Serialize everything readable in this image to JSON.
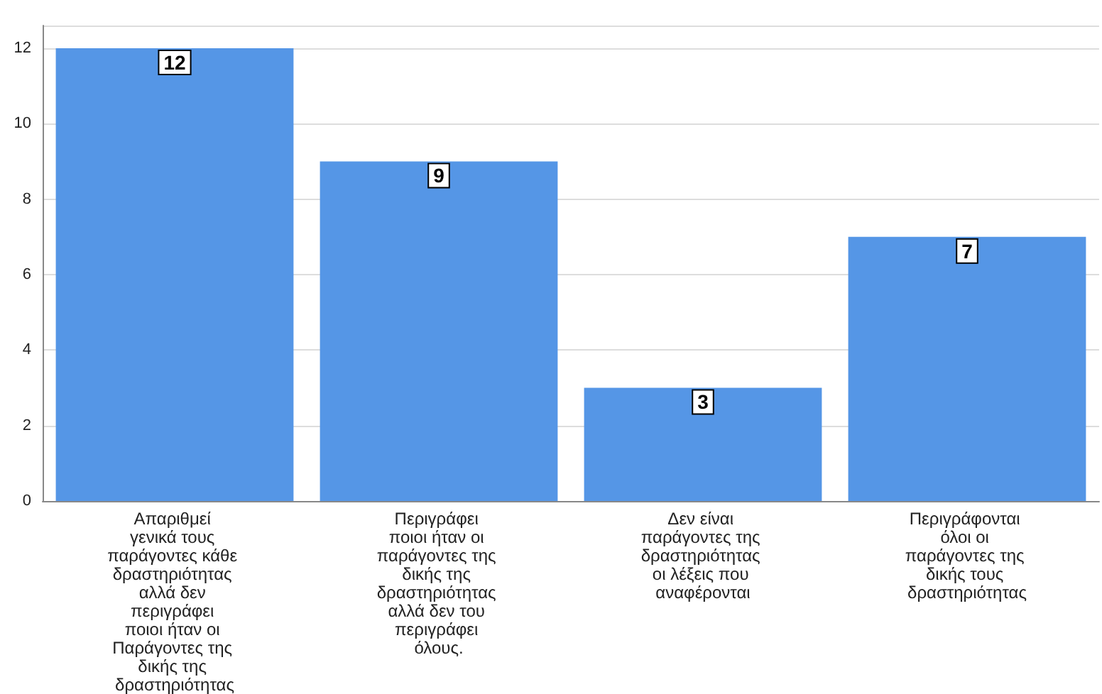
{
  "chart_data": {
    "type": "bar",
    "categories": [
      "Απαριθμεί γενικά τους παράγοντες κάθε δραστηριότητας αλλά δεν περιγράφει ποιοι ήταν οι Παράγοντες της δικής της δραστηριότητας",
      "Περιγράφει ποιοι ήταν οι παράγοντες της δικής της δραστηριότητας αλλά δεν του περιγράφει όλους.",
      "Δεν είναι παράγοντες της δραστηριότητας οι λέξεις που αναφέρονται",
      "Περιγράφονται όλοι οι παράγοντες της δικής τους δραστηριότητας"
    ],
    "values": [
      12,
      9,
      3,
      7
    ],
    "color": "#5596e6",
    "ylim": [
      0,
      12.6
    ],
    "yticks": [
      0,
      2,
      4,
      6,
      8,
      10,
      12
    ],
    "grid": "y",
    "data_labels": true
  }
}
